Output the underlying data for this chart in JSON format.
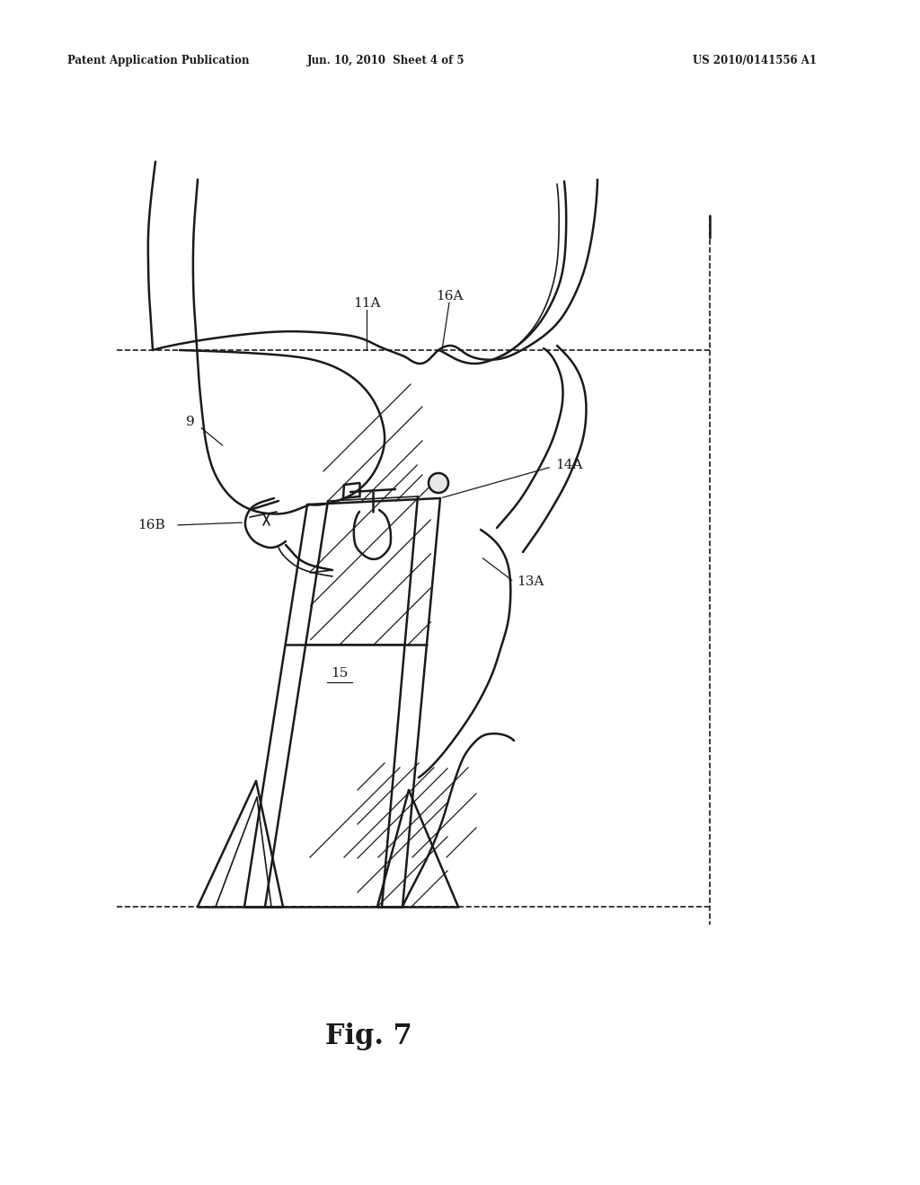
{
  "bg_color": "#ffffff",
  "line_color": "#1a1a1a",
  "header_left": "Patent Application Publication",
  "header_mid": "Jun. 10, 2010  Sheet 4 of 5",
  "header_right": "US 2010/0141556 A1",
  "fig_label": "Fig. 7",
  "fig_label_bold": true
}
